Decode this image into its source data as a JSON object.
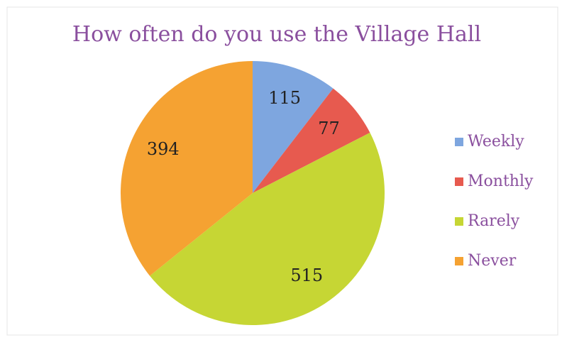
{
  "chart_data": {
    "type": "pie",
    "title": "How often do you use the Village Hall",
    "categories": [
      "Weekly",
      "Monthly",
      "Rarely",
      "Never"
    ],
    "values": [
      115,
      77,
      515,
      394
    ],
    "colors": [
      "#7ea6df",
      "#e75a4f",
      "#c6d634",
      "#f5a232"
    ],
    "legend": "right"
  }
}
